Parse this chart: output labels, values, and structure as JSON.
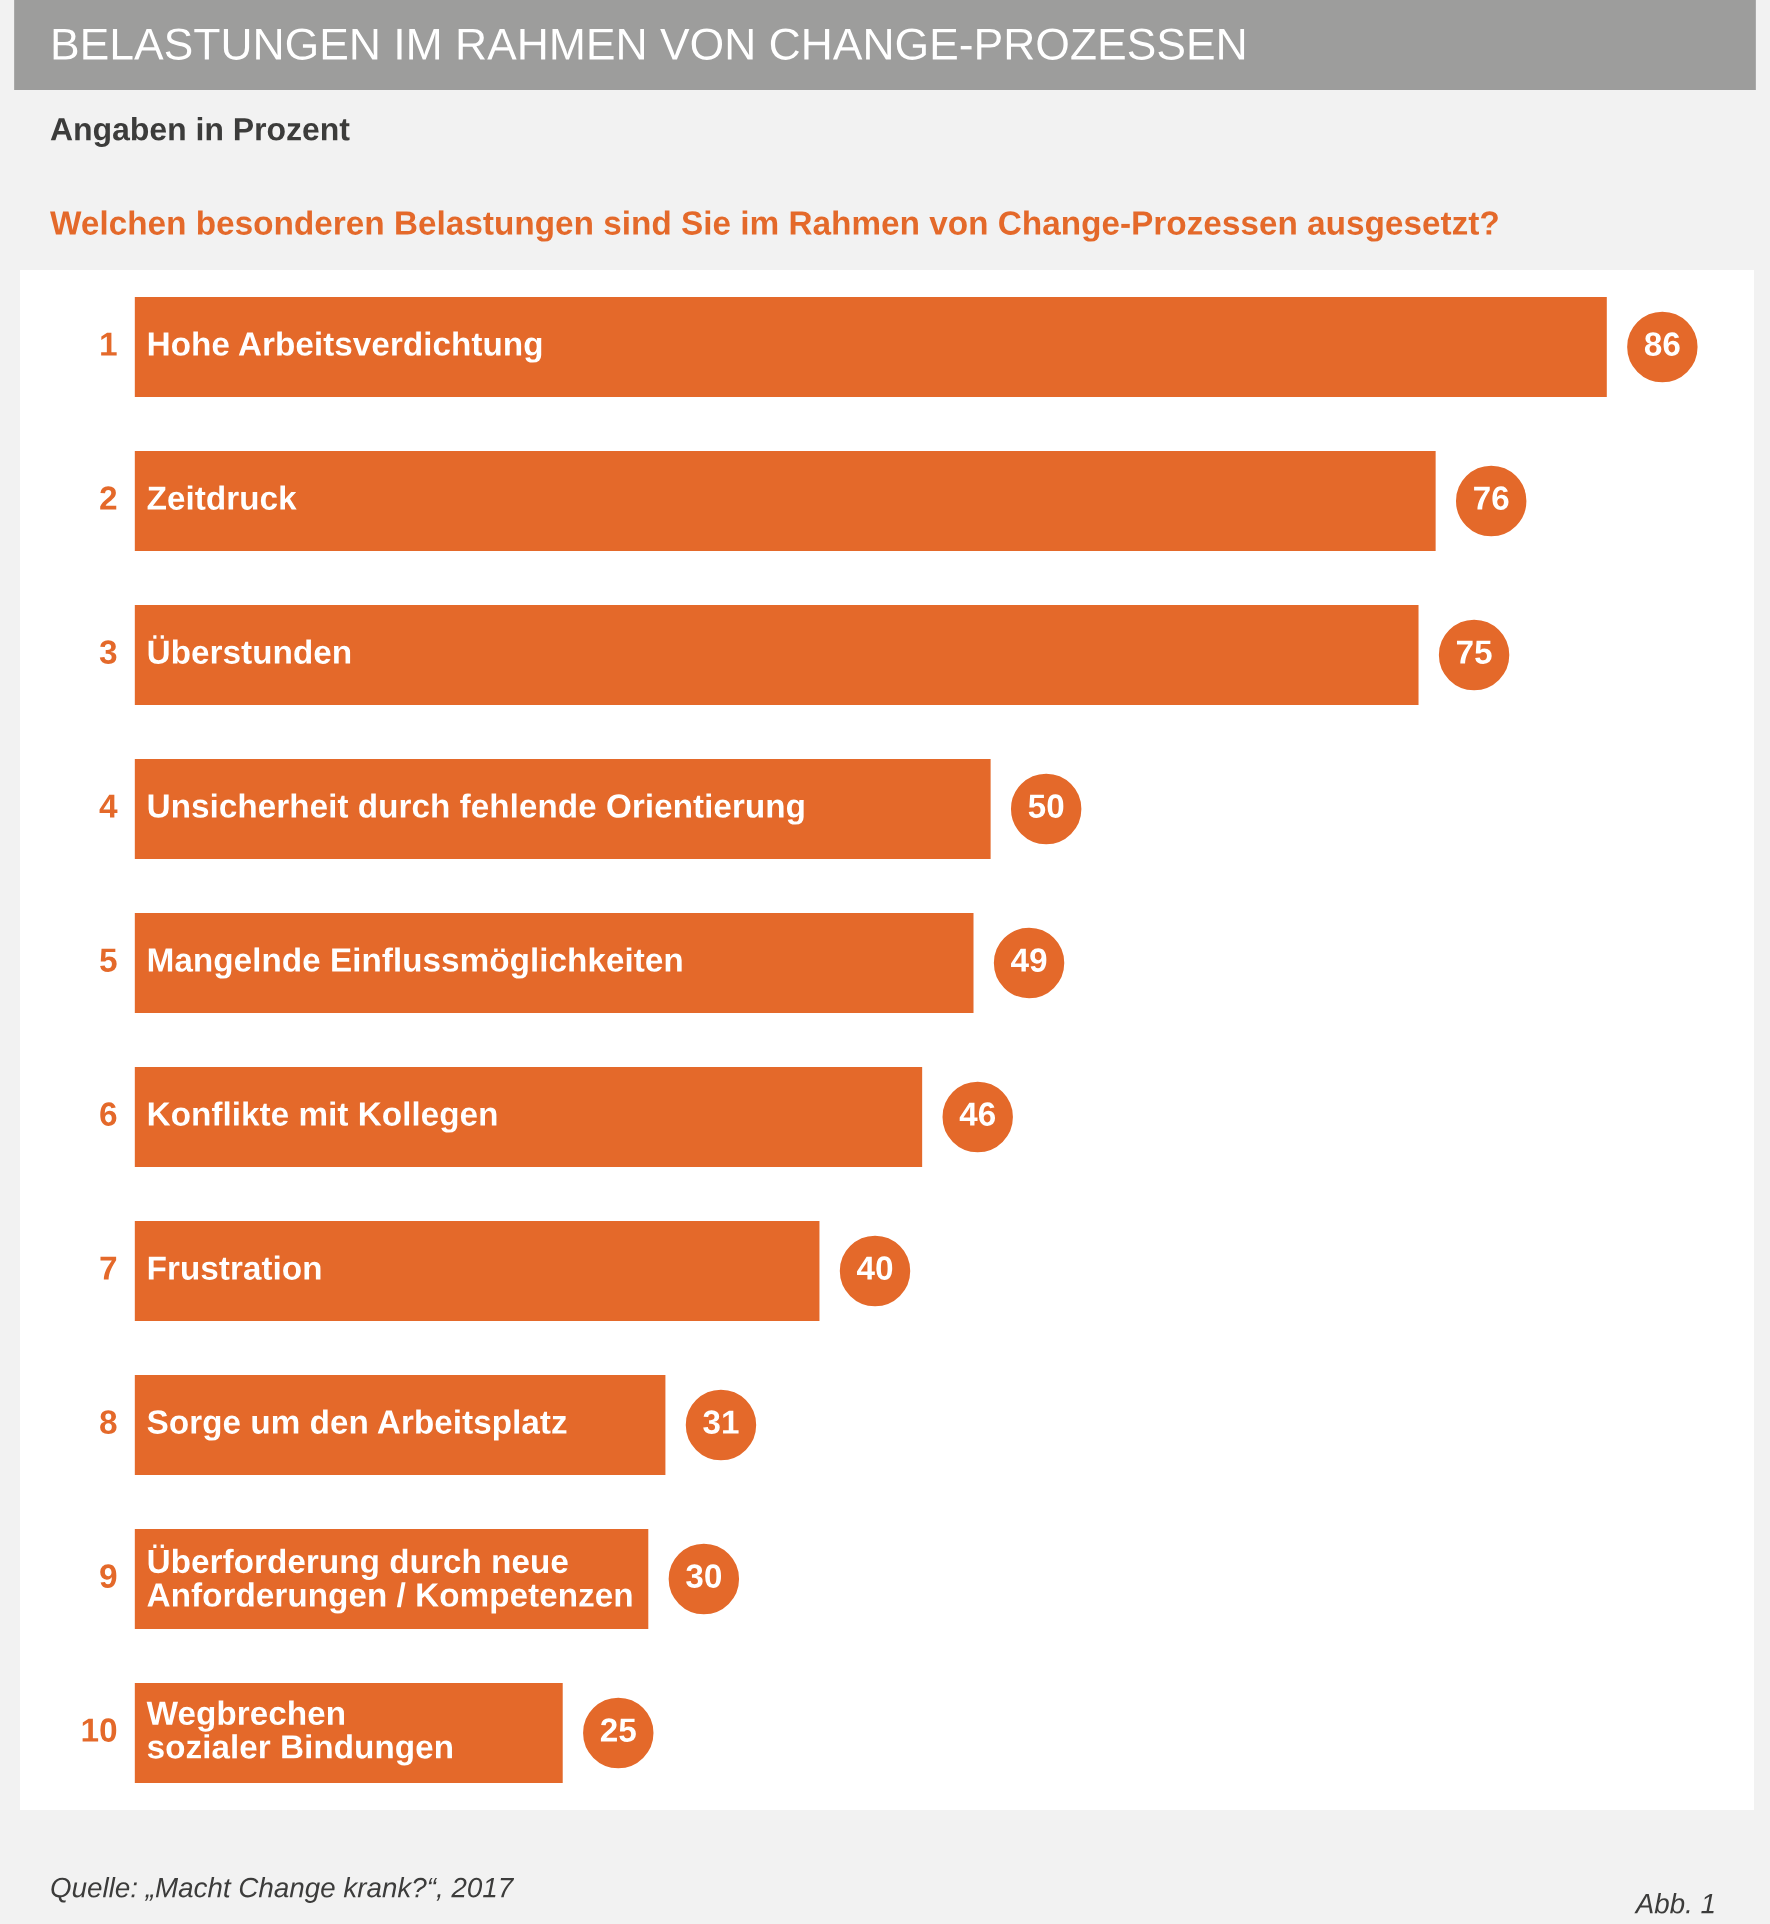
{
  "chart_data": {
    "type": "bar",
    "orientation": "horizontal",
    "title": "BELASTUNGEN IM RAHMEN VON CHANGE-PROZESSEN",
    "subtitle": "Angaben in Prozent",
    "categories": [
      "Hohe Arbeitsverdichtung",
      "Zeitdruck",
      "Überstunden",
      "Unsicherheit durch fehlende Orientierung",
      "Mangelnde Einflussmöglichkeiten",
      "Konflikte mit Kollegen",
      "Frustration",
      "Sorge um den Arbeitsplatz",
      "Überforderung durch neue\nAnforderungen / Kompetenzen",
      "Wegbrechen\nsozialer Bindungen"
    ],
    "values": [
      86,
      76,
      75,
      50,
      49,
      46,
      40,
      31,
      30,
      25
    ],
    "color": "#e4692a",
    "data_labels": true,
    "annotations": [
      "Welchen besonderen Belastungen sind Sie im Rahmen von Change-Prozessen ausgesetzt?",
      "Quelle: „Macht Change krank?“, 2017",
      "Abb. 1",
      "1",
      "2",
      "3",
      "4",
      "5",
      "6",
      "7",
      "8",
      "9",
      "10"
    ]
  }
}
